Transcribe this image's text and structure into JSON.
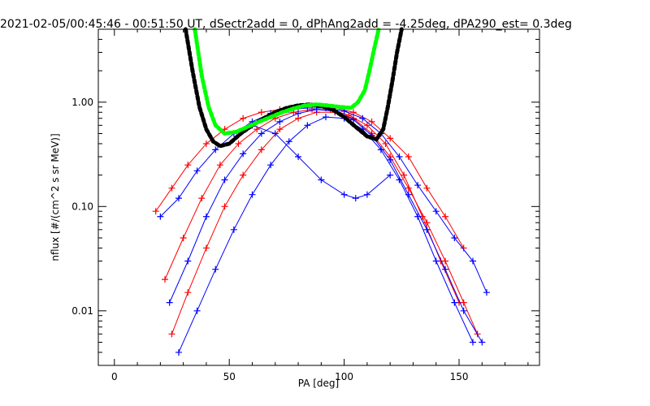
{
  "chart_data": {
    "type": "line",
    "title": "2021-02-05/00:45:46 - 00:51:50 UT, dSectr2add = 0, dPhAng2add = -4.25deg, dPA290_est=   0.3deg",
    "xlabel": "PA [deg]",
    "ylabel": "nflux [#/(cm^2 s sr MeV)]",
    "xlim": [
      -7,
      185
    ],
    "ylim": [
      0.003,
      5
    ],
    "yscale": "log",
    "x_ticks": [
      0,
      50,
      100,
      150
    ],
    "x_tick_labels": [
      "0",
      "50",
      "100",
      "150"
    ],
    "y_ticks": [
      0.01,
      0.1,
      1.0
    ],
    "y_tick_labels": [
      "0.01",
      "0.10",
      "1.00"
    ],
    "grid": false,
    "legend": "none",
    "colors": {
      "red": "#ff0000",
      "blue": "#0000ff",
      "black": "#000000",
      "green": "#00ff00"
    },
    "series": [
      {
        "color": "red",
        "style": "line+cross",
        "x": [
          18,
          25,
          32,
          40,
          48,
          56,
          64,
          72,
          80,
          88,
          96,
          104,
          112,
          120,
          128,
          136,
          144,
          152
        ],
        "y": [
          0.09,
          0.15,
          0.25,
          0.4,
          0.55,
          0.7,
          0.8,
          0.85,
          0.9,
          0.92,
          0.88,
          0.8,
          0.65,
          0.45,
          0.3,
          0.15,
          0.08,
          0.04
        ]
      },
      {
        "color": "red",
        "style": "line+cross",
        "x": [
          22,
          30,
          38,
          46,
          54,
          62,
          70,
          78,
          86,
          94,
          102,
          110,
          118,
          126,
          134,
          142,
          150
        ],
        "y": [
          0.02,
          0.05,
          0.12,
          0.25,
          0.4,
          0.55,
          0.7,
          0.8,
          0.85,
          0.85,
          0.75,
          0.6,
          0.4,
          0.2,
          0.08,
          0.03,
          0.012
        ]
      },
      {
        "color": "red",
        "style": "line+cross",
        "x": [
          25,
          32,
          40,
          48,
          56,
          64,
          72,
          80,
          88,
          96,
          104,
          112,
          120,
          128,
          136,
          144,
          152,
          158
        ],
        "y": [
          0.006,
          0.015,
          0.04,
          0.1,
          0.2,
          0.35,
          0.55,
          0.7,
          0.8,
          0.8,
          0.7,
          0.5,
          0.3,
          0.15,
          0.07,
          0.03,
          0.012,
          0.006
        ]
      },
      {
        "color": "blue",
        "style": "line+cross",
        "x": [
          20,
          28,
          36,
          44,
          52,
          60,
          68,
          76,
          84,
          92,
          100,
          108,
          116,
          124,
          132,
          140,
          148,
          156,
          162
        ],
        "y": [
          0.08,
          0.12,
          0.22,
          0.35,
          0.5,
          0.65,
          0.78,
          0.85,
          0.88,
          0.88,
          0.82,
          0.7,
          0.5,
          0.3,
          0.16,
          0.09,
          0.05,
          0.03,
          0.015
        ]
      },
      {
        "color": "blue",
        "style": "line+cross",
        "x": [
          24,
          32,
          40,
          48,
          56,
          64,
          72,
          80,
          88,
          96,
          104,
          112,
          120,
          128,
          136,
          144,
          152,
          160
        ],
        "y": [
          0.012,
          0.03,
          0.08,
          0.18,
          0.32,
          0.5,
          0.65,
          0.78,
          0.85,
          0.82,
          0.68,
          0.48,
          0.28,
          0.13,
          0.06,
          0.025,
          0.01,
          0.005
        ]
      },
      {
        "color": "blue",
        "style": "line+cross",
        "x": [
          28,
          36,
          44,
          52,
          60,
          68,
          76,
          84,
          92,
          100,
          108,
          116,
          124,
          132,
          140,
          148,
          156
        ],
        "y": [
          0.004,
          0.01,
          0.025,
          0.06,
          0.13,
          0.25,
          0.42,
          0.6,
          0.72,
          0.7,
          0.55,
          0.35,
          0.18,
          0.08,
          0.03,
          0.012,
          0.005
        ]
      },
      {
        "color": "blue",
        "style": "line+cross",
        "x": [
          60,
          70,
          80,
          90,
          100,
          105,
          110,
          120
        ],
        "y": [
          0.6,
          0.5,
          0.3,
          0.18,
          0.13,
          0.12,
          0.13,
          0.2
        ]
      },
      {
        "color": "black",
        "style": "dotted-thick",
        "x": [
          31,
          34,
          37,
          40,
          43,
          46,
          50,
          55,
          60,
          65,
          70,
          75,
          80,
          85,
          90,
          95,
          100,
          105,
          110,
          114,
          117,
          119,
          121,
          123,
          125
        ],
        "y": [
          5,
          2.0,
          0.9,
          0.55,
          0.42,
          0.38,
          0.4,
          0.5,
          0.6,
          0.7,
          0.8,
          0.88,
          0.93,
          0.95,
          0.92,
          0.85,
          0.72,
          0.58,
          0.47,
          0.44,
          0.55,
          0.9,
          1.6,
          3.0,
          5
        ]
      },
      {
        "color": "green",
        "style": "dotted-thick",
        "x": [
          35,
          38,
          41,
          44,
          48,
          53,
          58,
          63,
          68,
          73,
          78,
          83,
          88,
          93,
          98,
          103,
          106,
          109,
          111,
          113,
          115
        ],
        "y": [
          5,
          1.8,
          0.9,
          0.6,
          0.5,
          0.52,
          0.58,
          0.65,
          0.72,
          0.8,
          0.87,
          0.93,
          0.95,
          0.93,
          0.9,
          0.88,
          1.0,
          1.3,
          2.0,
          3.2,
          5
        ]
      }
    ]
  }
}
